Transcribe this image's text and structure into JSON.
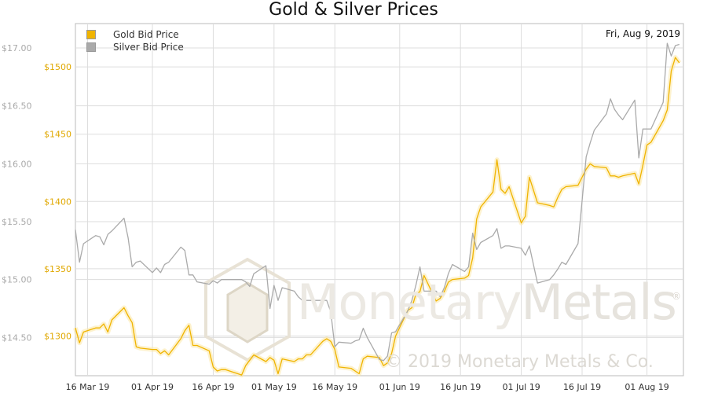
{
  "chart_data": {
    "type": "line",
    "title": "Gold & Silver Prices",
    "date_label": "Fri, Aug 9, 2019",
    "grid": true,
    "legend_position": "top-left",
    "x_range": [
      "2019-03-13",
      "2019-08-10"
    ],
    "x_ticks": [
      {
        "date": "2019-03-16",
        "label": "16 Mar 19"
      },
      {
        "date": "2019-04-01",
        "label": "01 Apr 19"
      },
      {
        "date": "2019-04-16",
        "label": "16 Apr 19"
      },
      {
        "date": "2019-05-01",
        "label": "01 May 19"
      },
      {
        "date": "2019-05-16",
        "label": "16 May 19"
      },
      {
        "date": "2019-06-01",
        "label": "01 Jun 19"
      },
      {
        "date": "2019-06-16",
        "label": "16 Jun 19"
      },
      {
        "date": "2019-07-01",
        "label": "01 Jul 19"
      },
      {
        "date": "2019-07-16",
        "label": "16 Jul 19"
      },
      {
        "date": "2019-08-01",
        "label": "01 Aug 19"
      }
    ],
    "y_left": {
      "ticks": [
        14.5,
        15.0,
        15.5,
        16.0,
        16.5,
        17.0
      ],
      "labels": [
        "$14.50",
        "$15.00",
        "$15.50",
        "$16.00",
        "$16.50",
        "$17.00"
      ],
      "range": [
        14.17,
        17.21
      ]
    },
    "y_right": {
      "ticks": [
        1300,
        1350,
        1400,
        1450,
        1500
      ],
      "labels": [
        "$1300",
        "$1350",
        "$1400",
        "$1450",
        "$1500"
      ],
      "range": [
        1270.5,
        1532.2
      ]
    },
    "series": [
      {
        "name": "Gold Bid Price",
        "axis": "right",
        "color": "#f0b400",
        "points": [
          [
            "2019-03-13",
            1306
          ],
          [
            "2019-03-14",
            1295
          ],
          [
            "2019-03-15",
            1303
          ],
          [
            "2019-03-18",
            1306
          ],
          [
            "2019-03-19",
            1306
          ],
          [
            "2019-03-20",
            1309
          ],
          [
            "2019-03-21",
            1303
          ],
          [
            "2019-03-22",
            1312
          ],
          [
            "2019-03-25",
            1321
          ],
          [
            "2019-03-26",
            1315
          ],
          [
            "2019-03-27",
            1310
          ],
          [
            "2019-03-28",
            1292
          ],
          [
            "2019-03-29",
            1291
          ],
          [
            "2019-04-01",
            1290
          ],
          [
            "2019-04-02",
            1290
          ],
          [
            "2019-04-03",
            1287
          ],
          [
            "2019-04-04",
            1289
          ],
          [
            "2019-04-05",
            1286
          ],
          [
            "2019-04-08",
            1298
          ],
          [
            "2019-04-09",
            1304
          ],
          [
            "2019-04-10",
            1308
          ],
          [
            "2019-04-11",
            1293
          ],
          [
            "2019-04-12",
            1293
          ],
          [
            "2019-04-15",
            1289
          ],
          [
            "2019-04-16",
            1277
          ],
          [
            "2019-04-17",
            1274
          ],
          [
            "2019-04-18",
            1275
          ],
          [
            "2019-04-19",
            1275
          ],
          [
            "2019-04-22",
            1272
          ],
          [
            "2019-04-23",
            1271
          ],
          [
            "2019-04-24",
            1278
          ],
          [
            "2019-04-25",
            1282
          ],
          [
            "2019-04-26",
            1286
          ],
          [
            "2019-04-29",
            1281
          ],
          [
            "2019-04-30",
            1284
          ],
          [
            "2019-05-01",
            1282
          ],
          [
            "2019-05-02",
            1272
          ],
          [
            "2019-05-03",
            1283
          ],
          [
            "2019-05-06",
            1281
          ],
          [
            "2019-05-07",
            1283
          ],
          [
            "2019-05-08",
            1283
          ],
          [
            "2019-05-09",
            1286
          ],
          [
            "2019-05-10",
            1286
          ],
          [
            "2019-05-13",
            1296
          ],
          [
            "2019-05-14",
            1298
          ],
          [
            "2019-05-15",
            1296
          ],
          [
            "2019-05-16",
            1290
          ],
          [
            "2019-05-17",
            1277
          ],
          [
            "2019-05-20",
            1276
          ],
          [
            "2019-05-21",
            1274
          ],
          [
            "2019-05-22",
            1272
          ],
          [
            "2019-05-23",
            1283
          ],
          [
            "2019-05-24",
            1285
          ],
          [
            "2019-05-27",
            1284
          ],
          [
            "2019-05-28",
            1278
          ],
          [
            "2019-05-29",
            1280
          ],
          [
            "2019-05-30",
            1287
          ],
          [
            "2019-05-31",
            1300
          ],
          [
            "2019-06-03",
            1319
          ],
          [
            "2019-06-04",
            1321
          ],
          [
            "2019-06-05",
            1331
          ],
          [
            "2019-06-06",
            1333
          ],
          [
            "2019-06-07",
            1345
          ],
          [
            "2019-06-10",
            1326
          ],
          [
            "2019-06-11",
            1328
          ],
          [
            "2019-06-12",
            1333
          ],
          [
            "2019-06-13",
            1340
          ],
          [
            "2019-06-14",
            1342
          ],
          [
            "2019-06-17",
            1343
          ],
          [
            "2019-06-18",
            1345
          ],
          [
            "2019-06-19",
            1358
          ],
          [
            "2019-06-20",
            1387
          ],
          [
            "2019-06-21",
            1396
          ],
          [
            "2019-06-24",
            1407
          ],
          [
            "2019-06-25",
            1431
          ],
          [
            "2019-06-26",
            1409
          ],
          [
            "2019-06-27",
            1406
          ],
          [
            "2019-06-28",
            1411
          ],
          [
            "2019-07-01",
            1384
          ],
          [
            "2019-07-02",
            1389
          ],
          [
            "2019-07-03",
            1418
          ],
          [
            "2019-07-05",
            1399
          ],
          [
            "2019-07-08",
            1397
          ],
          [
            "2019-07-09",
            1396
          ],
          [
            "2019-07-10",
            1403
          ],
          [
            "2019-07-11",
            1409
          ],
          [
            "2019-07-12",
            1411
          ],
          [
            "2019-07-15",
            1412
          ],
          [
            "2019-07-16",
            1418
          ],
          [
            "2019-07-17",
            1424
          ],
          [
            "2019-07-18",
            1428
          ],
          [
            "2019-07-19",
            1426
          ],
          [
            "2019-07-22",
            1425
          ],
          [
            "2019-07-23",
            1419
          ],
          [
            "2019-07-24",
            1419
          ],
          [
            "2019-07-25",
            1418
          ],
          [
            "2019-07-26",
            1419
          ],
          [
            "2019-07-29",
            1421
          ],
          [
            "2019-07-30",
            1413
          ],
          [
            "2019-07-31",
            1427
          ],
          [
            "2019-08-01",
            1442
          ],
          [
            "2019-08-02",
            1444
          ],
          [
            "2019-08-05",
            1460
          ],
          [
            "2019-08-06",
            1468
          ],
          [
            "2019-08-07",
            1497
          ],
          [
            "2019-08-08",
            1507
          ],
          [
            "2019-08-09",
            1503
          ]
        ]
      },
      {
        "name": "Silver Bid Price",
        "axis": "left",
        "color": "#aaaaaa",
        "points": [
          [
            "2019-03-13",
            15.43
          ],
          [
            "2019-03-14",
            15.15
          ],
          [
            "2019-03-15",
            15.31
          ],
          [
            "2019-03-18",
            15.38
          ],
          [
            "2019-03-19",
            15.37
          ],
          [
            "2019-03-20",
            15.3
          ],
          [
            "2019-03-21",
            15.39
          ],
          [
            "2019-03-22",
            15.42
          ],
          [
            "2019-03-25",
            15.53
          ],
          [
            "2019-03-26",
            15.36
          ],
          [
            "2019-03-27",
            15.11
          ],
          [
            "2019-03-28",
            15.15
          ],
          [
            "2019-03-29",
            15.16
          ],
          [
            "2019-04-01",
            15.06
          ],
          [
            "2019-04-02",
            15.1
          ],
          [
            "2019-04-03",
            15.06
          ],
          [
            "2019-04-04",
            15.13
          ],
          [
            "2019-04-05",
            15.15
          ],
          [
            "2019-04-08",
            15.28
          ],
          [
            "2019-04-09",
            15.25
          ],
          [
            "2019-04-10",
            15.04
          ],
          [
            "2019-04-11",
            15.04
          ],
          [
            "2019-04-12",
            14.98
          ],
          [
            "2019-04-15",
            14.96
          ],
          [
            "2019-04-16",
            14.99
          ],
          [
            "2019-04-17",
            14.97
          ],
          [
            "2019-04-18",
            15.0
          ],
          [
            "2019-04-22",
            15.0
          ],
          [
            "2019-04-23",
            15.0
          ],
          [
            "2019-04-24",
            14.98
          ],
          [
            "2019-04-25",
            14.94
          ],
          [
            "2019-04-26",
            15.05
          ],
          [
            "2019-04-29",
            15.12
          ],
          [
            "2019-04-30",
            14.75
          ],
          [
            "2019-05-01",
            14.95
          ],
          [
            "2019-05-02",
            14.82
          ],
          [
            "2019-05-03",
            14.93
          ],
          [
            "2019-05-06",
            14.9
          ],
          [
            "2019-05-07",
            14.85
          ],
          [
            "2019-05-08",
            14.82
          ],
          [
            "2019-05-09",
            14.82
          ],
          [
            "2019-05-10",
            14.82
          ],
          [
            "2019-05-13",
            14.82
          ],
          [
            "2019-05-14",
            14.82
          ],
          [
            "2019-05-15",
            14.72
          ],
          [
            "2019-05-16",
            14.42
          ],
          [
            "2019-05-17",
            14.46
          ],
          [
            "2019-05-20",
            14.45
          ],
          [
            "2019-05-21",
            14.47
          ],
          [
            "2019-05-22",
            14.48
          ],
          [
            "2019-05-23",
            14.58
          ],
          [
            "2019-05-24",
            14.5
          ],
          [
            "2019-05-27",
            14.31
          ],
          [
            "2019-05-28",
            14.3
          ],
          [
            "2019-05-29",
            14.34
          ],
          [
            "2019-05-30",
            14.54
          ],
          [
            "2019-05-31",
            14.55
          ],
          [
            "2019-06-03",
            14.73
          ],
          [
            "2019-06-04",
            14.82
          ],
          [
            "2019-06-05",
            14.95
          ],
          [
            "2019-06-06",
            15.11
          ],
          [
            "2019-06-07",
            14.9
          ],
          [
            "2019-06-10",
            14.9
          ],
          [
            "2019-06-11",
            14.85
          ],
          [
            "2019-06-12",
            14.93
          ],
          [
            "2019-06-13",
            15.05
          ],
          [
            "2019-06-14",
            15.13
          ],
          [
            "2019-06-17",
            15.07
          ],
          [
            "2019-06-18",
            15.11
          ],
          [
            "2019-06-19",
            15.4
          ],
          [
            "2019-06-20",
            15.26
          ],
          [
            "2019-06-21",
            15.32
          ],
          [
            "2019-06-24",
            15.38
          ],
          [
            "2019-06-25",
            15.44
          ],
          [
            "2019-06-26",
            15.27
          ],
          [
            "2019-06-27",
            15.29
          ],
          [
            "2019-06-28",
            15.29
          ],
          [
            "2019-07-01",
            15.27
          ],
          [
            "2019-07-02",
            15.21
          ],
          [
            "2019-07-03",
            15.29
          ],
          [
            "2019-07-05",
            14.97
          ],
          [
            "2019-07-08",
            15.0
          ],
          [
            "2019-07-09",
            15.04
          ],
          [
            "2019-07-10",
            15.09
          ],
          [
            "2019-07-11",
            15.15
          ],
          [
            "2019-07-12",
            15.13
          ],
          [
            "2019-07-15",
            15.31
          ],
          [
            "2019-07-16",
            15.68
          ],
          [
            "2019-07-17",
            16.06
          ],
          [
            "2019-07-18",
            16.18
          ],
          [
            "2019-07-19",
            16.29
          ],
          [
            "2019-07-22",
            16.43
          ],
          [
            "2019-07-23",
            16.56
          ],
          [
            "2019-07-24",
            16.47
          ],
          [
            "2019-07-25",
            16.42
          ],
          [
            "2019-07-26",
            16.38
          ],
          [
            "2019-07-29",
            16.55
          ],
          [
            "2019-07-30",
            16.05
          ],
          [
            "2019-07-31",
            16.3
          ],
          [
            "2019-08-01",
            16.3
          ],
          [
            "2019-08-02",
            16.3
          ],
          [
            "2019-08-05",
            16.53
          ],
          [
            "2019-08-06",
            17.04
          ],
          [
            "2019-08-07",
            16.93
          ],
          [
            "2019-08-08",
            17.02
          ],
          [
            "2019-08-09",
            17.03
          ]
        ]
      }
    ]
  },
  "watermark": {
    "brand_light": "Monetary",
    "brand_bold": "Metals",
    "registered": "®",
    "copyright": "© 2019 Monetary Metals & Co."
  }
}
